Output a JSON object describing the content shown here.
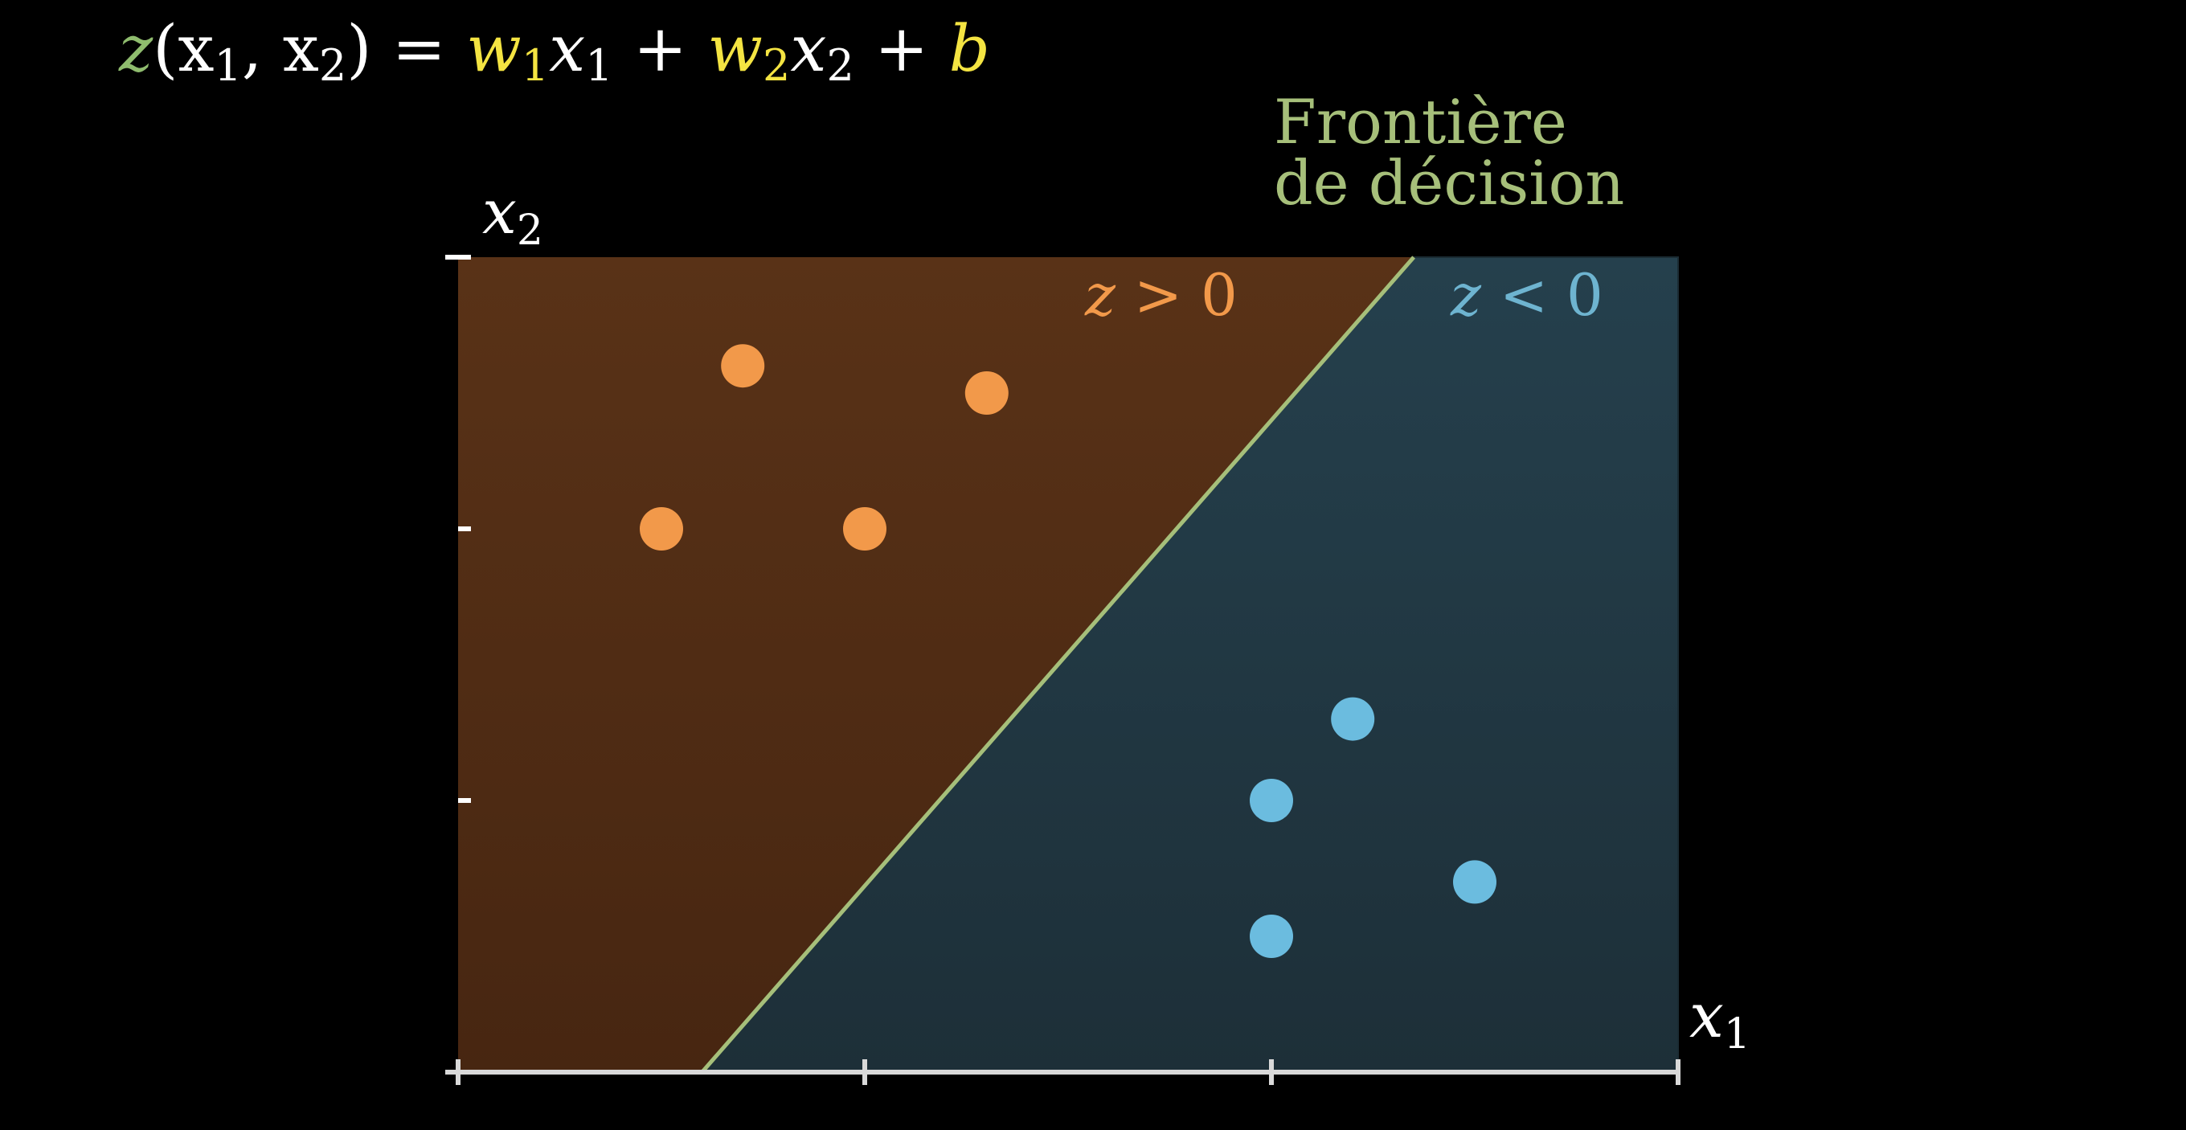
{
  "equation": {
    "z": "z",
    "lhs_args": "(x",
    "sub1": "1",
    "comma": ", x",
    "sub2": "2",
    "close_eq": ") = ",
    "w1": "w",
    "w1_sub": "1",
    "x1_term": "x",
    "x1_sub": "1",
    "plus1": " + ",
    "w2": "w",
    "w2_sub": "2",
    "x2_term": "x",
    "x2_sub": "2",
    "plus2": " + ",
    "b": "b"
  },
  "boundary_label": {
    "line1": "Frontière",
    "line2": "de décision"
  },
  "region_labels": {
    "positive": {
      "var": "z",
      "op": " > ",
      "val": "0"
    },
    "negative": {
      "var": "z",
      "op": " < ",
      "val": "0"
    }
  },
  "axis_labels": {
    "x": {
      "base": "x",
      "sub": "1"
    },
    "y": {
      "base": "x",
      "sub": "2"
    }
  },
  "colors": {
    "background": "#000000",
    "equation_z": "#8fbc6e",
    "equation_weight": "#f4e442",
    "equation_text": "#ffffff",
    "boundary": "#a6bf7a",
    "positive_region_top": "#593217",
    "positive_region_bottom": "#472611",
    "negative_region_top": "#25404d",
    "negative_region_bottom": "#1d2f38",
    "positive_points": "#f2994a",
    "negative_points": "#6bbcdf",
    "positive_label": "#f2994a",
    "negative_label": "#6eb4d0",
    "axis": "#d9d9d9"
  },
  "chart_data": {
    "type": "scatter",
    "title": "",
    "xlabel": "x1",
    "ylabel": "x2",
    "xlim": [
      0,
      3
    ],
    "ylim": [
      0,
      3
    ],
    "grid": false,
    "x_ticks": [
      0,
      1,
      2,
      3
    ],
    "y_ticks": [
      0,
      1,
      2,
      3
    ],
    "series": [
      {
        "name": "z > 0",
        "color": "#f2994a",
        "points": [
          {
            "x": 0.7,
            "y": 2.6
          },
          {
            "x": 1.3,
            "y": 2.5
          },
          {
            "x": 0.5,
            "y": 2.0
          },
          {
            "x": 1.0,
            "y": 2.0
          }
        ]
      },
      {
        "name": "z < 0",
        "color": "#6bbcdf",
        "points": [
          {
            "x": 2.2,
            "y": 1.3
          },
          {
            "x": 2.0,
            "y": 1.0
          },
          {
            "x": 2.5,
            "y": 0.7
          },
          {
            "x": 2.0,
            "y": 0.5
          }
        ]
      }
    ],
    "decision_boundary": {
      "from": {
        "x": 0.6,
        "y": 0
      },
      "to": {
        "x": 2.35,
        "y": 3
      }
    }
  }
}
